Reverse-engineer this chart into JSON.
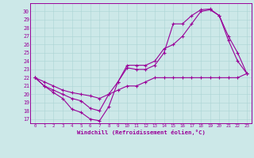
{
  "background_color": "#cce8e8",
  "line_color": "#990099",
  "xlabel": "Windchill (Refroidissement éolien,°C)",
  "xlim": [
    -0.5,
    23.5
  ],
  "ylim": [
    16.5,
    31
  ],
  "yticks": [
    17,
    18,
    19,
    20,
    21,
    22,
    23,
    24,
    25,
    26,
    27,
    28,
    29,
    30
  ],
  "xticks": [
    0,
    1,
    2,
    3,
    4,
    5,
    6,
    7,
    8,
    9,
    10,
    11,
    12,
    13,
    14,
    15,
    16,
    17,
    18,
    19,
    20,
    21,
    22,
    23
  ],
  "line1_x": [
    0,
    1,
    2,
    3,
    4,
    5,
    6,
    7,
    8,
    9,
    10,
    11,
    12,
    13,
    14,
    15,
    16,
    17,
    18,
    19,
    20,
    21,
    22,
    23
  ],
  "line1_y": [
    22,
    21,
    20.2,
    19.5,
    18.2,
    17.8,
    17.0,
    16.8,
    18.5,
    21.5,
    23.2,
    23.0,
    23.0,
    23.5,
    25.0,
    28.5,
    28.5,
    29.5,
    30.2,
    30.3,
    29.5,
    27.0,
    25.0,
    22.5
  ],
  "line2_x": [
    0,
    1,
    2,
    3,
    4,
    5,
    6,
    7,
    8,
    9,
    10,
    11,
    12,
    13,
    14,
    15,
    16,
    17,
    18,
    19,
    20,
    21,
    22,
    23
  ],
  "line2_y": [
    22,
    21,
    20.5,
    20,
    19.5,
    19.2,
    18.3,
    18.0,
    20.0,
    21.5,
    23.5,
    23.5,
    23.5,
    24.0,
    25.5,
    26.0,
    27.0,
    28.5,
    30.0,
    30.2,
    29.5,
    26.5,
    24.0,
    22.5
  ],
  "line3_x": [
    0,
    1,
    2,
    3,
    4,
    5,
    6,
    7,
    8,
    9,
    10,
    11,
    12,
    13,
    14,
    15,
    16,
    17,
    18,
    19,
    20,
    21,
    22,
    23
  ],
  "line3_y": [
    22,
    21.5,
    21.0,
    20.5,
    20.2,
    20.0,
    19.8,
    19.5,
    20.0,
    20.5,
    21.0,
    21.0,
    21.5,
    22.0,
    22.0,
    22.0,
    22.0,
    22.0,
    22.0,
    22.0,
    22.0,
    22.0,
    22.0,
    22.5
  ]
}
